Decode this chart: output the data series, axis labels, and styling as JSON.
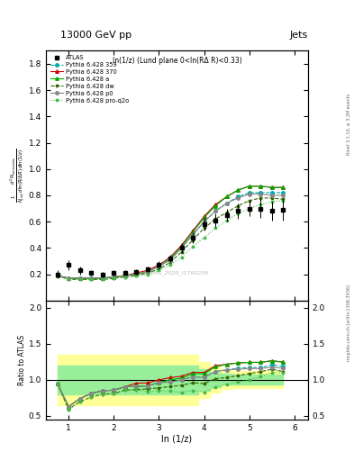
{
  "title": "13000 GeV pp",
  "title_right": "Jets",
  "annotation": "ln(1/z) (Lund plane 0<ln(RΔ R)<0.33)",
  "watermark": "ATLAS_2020_I1790256",
  "xlabel": "ln (1/z)",
  "ylabel_ratio": "Ratio to ATLAS",
  "right_label": "Rivet 3.1.10, ≥ 3.2M events",
  "right_label2": "mcplots.cern.ch [arXiv:1306.3436]",
  "xlim": [
    0.5,
    6.3
  ],
  "ylim_main": [
    0.0,
    1.9
  ],
  "ylim_ratio": [
    0.45,
    2.1
  ],
  "yticks_main": [
    0.2,
    0.4,
    0.6,
    0.8,
    1.0,
    1.2,
    1.4,
    1.6,
    1.8
  ],
  "yticks_ratio": [
    0.5,
    1.0,
    1.5,
    2.0
  ],
  "x_atlas": [
    0.75,
    1.0,
    1.25,
    1.5,
    1.75,
    2.0,
    2.25,
    2.5,
    2.75,
    3.0,
    3.25,
    3.5,
    3.75,
    4.0,
    4.25,
    4.5,
    4.75,
    5.0,
    5.25,
    5.5,
    5.75
  ],
  "y_atlas": [
    0.2,
    0.27,
    0.23,
    0.21,
    0.2,
    0.21,
    0.21,
    0.22,
    0.24,
    0.27,
    0.32,
    0.4,
    0.48,
    0.58,
    0.61,
    0.65,
    0.68,
    0.7,
    0.7,
    0.68,
    0.69
  ],
  "err_atlas_lo": [
    0.03,
    0.04,
    0.03,
    0.02,
    0.02,
    0.02,
    0.02,
    0.02,
    0.02,
    0.03,
    0.03,
    0.04,
    0.04,
    0.05,
    0.05,
    0.05,
    0.06,
    0.06,
    0.07,
    0.07,
    0.08
  ],
  "err_atlas_hi": [
    0.03,
    0.04,
    0.03,
    0.02,
    0.02,
    0.02,
    0.02,
    0.02,
    0.02,
    0.03,
    0.03,
    0.04,
    0.04,
    0.05,
    0.05,
    0.05,
    0.06,
    0.06,
    0.07,
    0.07,
    0.08
  ],
  "x_mc": [
    0.75,
    1.0,
    1.25,
    1.5,
    1.75,
    2.0,
    2.25,
    2.5,
    2.75,
    3.0,
    3.25,
    3.5,
    3.75,
    4.0,
    4.25,
    4.5,
    4.75,
    5.0,
    5.25,
    5.5,
    5.75
  ],
  "y_359": [
    0.19,
    0.17,
    0.17,
    0.17,
    0.17,
    0.18,
    0.19,
    0.2,
    0.22,
    0.26,
    0.31,
    0.4,
    0.5,
    0.6,
    0.68,
    0.74,
    0.79,
    0.82,
    0.82,
    0.82,
    0.82
  ],
  "y_370": [
    0.19,
    0.17,
    0.17,
    0.17,
    0.17,
    0.18,
    0.19,
    0.21,
    0.23,
    0.27,
    0.33,
    0.42,
    0.53,
    0.64,
    0.73,
    0.79,
    0.84,
    0.87,
    0.87,
    0.86,
    0.86
  ],
  "y_a": [
    0.19,
    0.17,
    0.17,
    0.17,
    0.17,
    0.18,
    0.19,
    0.2,
    0.22,
    0.26,
    0.32,
    0.41,
    0.52,
    0.63,
    0.72,
    0.79,
    0.84,
    0.87,
    0.87,
    0.86,
    0.86
  ],
  "y_dw": [
    0.19,
    0.16,
    0.16,
    0.16,
    0.16,
    0.17,
    0.18,
    0.19,
    0.21,
    0.24,
    0.29,
    0.37,
    0.46,
    0.55,
    0.62,
    0.67,
    0.72,
    0.76,
    0.78,
    0.78,
    0.77
  ],
  "y_p0": [
    0.19,
    0.17,
    0.17,
    0.17,
    0.17,
    0.18,
    0.19,
    0.2,
    0.22,
    0.26,
    0.31,
    0.4,
    0.5,
    0.6,
    0.68,
    0.74,
    0.78,
    0.81,
    0.81,
    0.8,
    0.8
  ],
  "y_proq2o": [
    0.19,
    0.16,
    0.16,
    0.16,
    0.16,
    0.17,
    0.18,
    0.19,
    0.2,
    0.23,
    0.27,
    0.33,
    0.41,
    0.48,
    0.55,
    0.61,
    0.66,
    0.7,
    0.73,
    0.75,
    0.76
  ],
  "band_green_lo": [
    0.8,
    0.8,
    0.8,
    0.8,
    0.8,
    0.8,
    0.8,
    0.8,
    0.8,
    0.8,
    0.8,
    0.8,
    0.8,
    0.85,
    0.9,
    0.93,
    0.93,
    0.93,
    0.93,
    0.93,
    0.93
  ],
  "band_green_hi": [
    1.2,
    1.2,
    1.2,
    1.2,
    1.2,
    1.2,
    1.2,
    1.2,
    1.2,
    1.2,
    1.2,
    1.2,
    1.2,
    1.15,
    1.1,
    1.08,
    1.07,
    1.07,
    1.07,
    1.07,
    1.07
  ],
  "band_yellow_lo": [
    0.65,
    0.65,
    0.65,
    0.65,
    0.65,
    0.65,
    0.65,
    0.65,
    0.65,
    0.65,
    0.65,
    0.65,
    0.65,
    0.75,
    0.82,
    0.87,
    0.88,
    0.88,
    0.88,
    0.88,
    0.88
  ],
  "band_yellow_hi": [
    1.35,
    1.35,
    1.35,
    1.35,
    1.35,
    1.35,
    1.35,
    1.35,
    1.35,
    1.35,
    1.35,
    1.35,
    1.35,
    1.25,
    1.18,
    1.13,
    1.12,
    1.12,
    1.12,
    1.12,
    1.12
  ],
  "color_359": "#00aaaa",
  "color_370": "#cc0000",
  "color_a": "#00aa00",
  "color_dw": "#336600",
  "color_p0": "#888888",
  "color_proq2o": "#44bb44",
  "atlas_color": "#000000",
  "bg_color": "#ffffff"
}
